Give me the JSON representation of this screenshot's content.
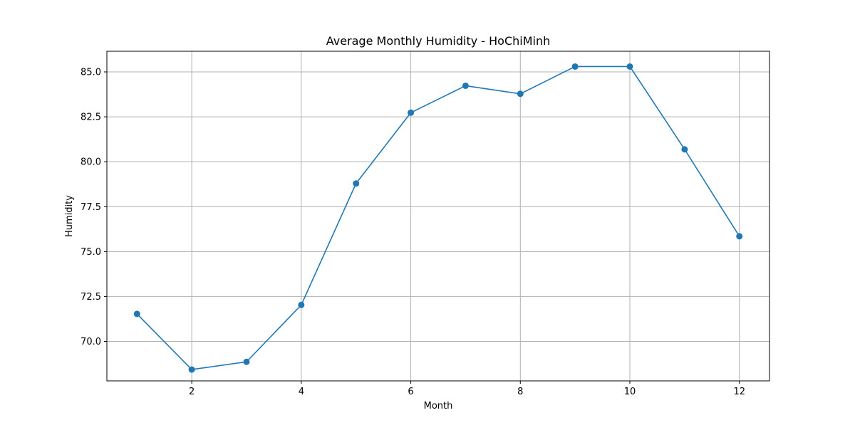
{
  "chart_data": {
    "type": "line",
    "title": "Average Monthly Humidity - HoChiMinh",
    "xlabel": "Month",
    "ylabel": "Humidity",
    "xlim": [
      0.45,
      12.55
    ],
    "ylim": [
      67.8,
      86.15
    ],
    "xticks": [
      2,
      4,
      6,
      8,
      10,
      12
    ],
    "xtick_labels": [
      "2",
      "4",
      "6",
      "8",
      "10",
      "12"
    ],
    "yticks": [
      70.0,
      72.5,
      75.0,
      77.5,
      80.0,
      82.5,
      85.0
    ],
    "ytick_labels": [
      "70.0",
      "72.5",
      "75.0",
      "77.5",
      "80.0",
      "82.5",
      "85.0"
    ],
    "grid": true,
    "marker": "circle",
    "color": "#1f77b4",
    "x": [
      1,
      2,
      3,
      4,
      5,
      6,
      7,
      8,
      9,
      10,
      11,
      12
    ],
    "y": [
      71.53,
      68.43,
      68.86,
      72.03,
      78.79,
      82.73,
      84.23,
      83.78,
      85.3,
      85.3,
      80.69,
      75.85
    ]
  }
}
